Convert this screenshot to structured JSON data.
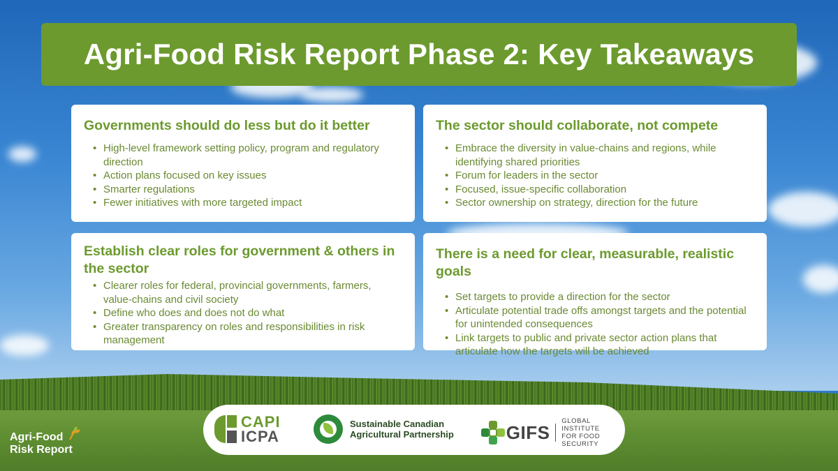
{
  "title": "Agri-Food Risk Report Phase 2: Key Takeaways",
  "cards": [
    {
      "heading": "Governments should do less but do it better",
      "bullets": [
        "High-level framework setting policy, program and regulatory direction",
        "Action plans focused on key issues",
        "Smarter regulations",
        "Fewer initiatives with more targeted impact"
      ]
    },
    {
      "heading": "The sector should collaborate, not compete",
      "bullets": [
        "Embrace the diversity in value-chains and regions, while identifying shared priorities",
        "Forum for leaders in the sector",
        "Focused, issue-specific collaboration",
        "Sector ownership on strategy, direction for the future"
      ]
    },
    {
      "heading": "Establish clear roles for government & others in the sector",
      "bullets": [
        "Clearer roles for federal, provincial governments, farmers, value-chains and civil society",
        "Define who does and does not do what",
        "Greater transparency on roles and responsibilities in risk management"
      ]
    },
    {
      "heading": "There is a need for clear, measurable, realistic goals",
      "bullets": [
        "Set targets to provide a direction for the sector",
        "Articulate potential trade offs amongst targets and the potential for unintended consequences",
        "Link targets to public and private sector action plans that articulate how the targets will be achieved"
      ]
    }
  ],
  "logos": {
    "capi_line1": "CAPI",
    "capi_line2": "ICPA",
    "scap_line1": "Sustainable Canadian",
    "scap_line2": "Agricultural Partnership",
    "gifs_name": "GIFS",
    "gifs_sub1": "GLOBAL INSTITUTE",
    "gifs_sub2": "FOR FOOD SECURITY"
  },
  "brand": {
    "line1": "Agri-Food",
    "line2": "Risk Report"
  },
  "colors": {
    "accent_green": "#6c9a2e",
    "text_green": "#6a8a33",
    "card_bg": "#ffffff"
  }
}
